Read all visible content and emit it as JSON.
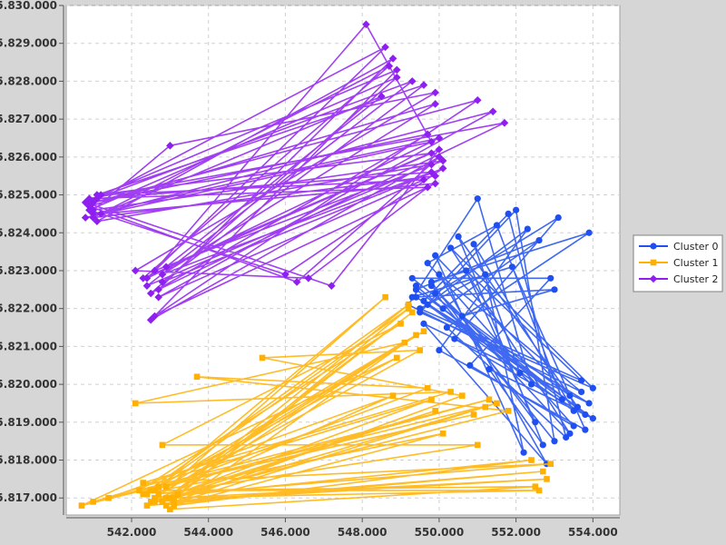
{
  "chart_data": {
    "type": "line",
    "title": "",
    "xlabel": "",
    "ylabel": "",
    "xlim": [
      540.3,
      554.7
    ],
    "ylim": [
      5816.55,
      5830.0
    ],
    "x_ticks": [
      542,
      544,
      546,
      548,
      550,
      552,
      554
    ],
    "x_tick_labels": [
      "542.000",
      "544.000",
      "546.000",
      "548.000",
      "550.000",
      "552.000",
      "554.000"
    ],
    "y_ticks": [
      5817,
      5818,
      5819,
      5820,
      5821,
      5822,
      5823,
      5824,
      5825,
      5826,
      5827,
      5828,
      5829,
      5830
    ],
    "y_tick_labels": [
      "5.817.000",
      "5.818.000",
      "5.819.000",
      "5.820.000",
      "5.821.000",
      "5.822.000",
      "5.823.000",
      "5.824.000",
      "5.825.000",
      "5.826.000",
      "5.827.000",
      "5.828.000",
      "5.829.000",
      "5.830.000"
    ],
    "grid": true,
    "legend_position": "right",
    "series": [
      {
        "name": "Cluster 0",
        "color": "#1f4ff0",
        "marker": "circle",
        "points": [
          [
            549.4,
            5822.3
          ],
          [
            553.9,
            5819.5
          ],
          [
            549.6,
            5821.6
          ],
          [
            552.8,
            5817.9
          ],
          [
            550.0,
            5822.9
          ],
          [
            553.7,
            5819.8
          ],
          [
            549.2,
            5822.1
          ],
          [
            551.0,
            5824.9
          ],
          [
            552.4,
            5820.0
          ],
          [
            549.8,
            5822.6
          ],
          [
            553.4,
            5818.7
          ],
          [
            550.3,
            5823.6
          ],
          [
            554.0,
            5819.9
          ],
          [
            549.5,
            5821.9
          ],
          [
            552.0,
            5824.6
          ],
          [
            553.0,
            5818.5
          ],
          [
            549.9,
            5822.4
          ],
          [
            553.1,
            5824.4
          ],
          [
            550.4,
            5821.2
          ],
          [
            553.8,
            5819.2
          ],
          [
            549.3,
            5822.8
          ],
          [
            552.9,
            5822.8
          ],
          [
            550.8,
            5820.5
          ],
          [
            553.5,
            5818.9
          ],
          [
            549.7,
            5823.2
          ],
          [
            551.5,
            5824.2
          ],
          [
            553.2,
            5819.6
          ],
          [
            550.1,
            5822.0
          ],
          [
            552.6,
            5823.8
          ],
          [
            549.4,
            5822.5
          ],
          [
            554.0,
            5819.1
          ],
          [
            551.3,
            5820.4
          ],
          [
            552.7,
            5818.4
          ],
          [
            550.5,
            5823.9
          ],
          [
            553.6,
            5819.4
          ],
          [
            549.6,
            5822.2
          ],
          [
            551.8,
            5824.5
          ],
          [
            553.3,
            5818.6
          ],
          [
            550.2,
            5821.5
          ],
          [
            553.9,
            5824.0
          ],
          [
            549.8,
            5822.7
          ],
          [
            552.5,
            5819.0
          ],
          [
            550.7,
            5823.0
          ],
          [
            553.7,
            5820.1
          ],
          [
            549.5,
            5822.0
          ],
          [
            551.2,
            5822.9
          ],
          [
            552.2,
            5818.2
          ],
          [
            549.9,
            5823.4
          ],
          [
            553.4,
            5819.7
          ],
          [
            550.6,
            5821.8
          ],
          [
            553.0,
            5822.5
          ],
          [
            549.3,
            5822.3
          ],
          [
            551.9,
            5823.1
          ],
          [
            553.8,
            5818.8
          ],
          [
            550.0,
            5820.9
          ],
          [
            552.3,
            5824.1
          ],
          [
            549.7,
            5822.1
          ],
          [
            553.5,
            5819.3
          ],
          [
            550.9,
            5823.7
          ],
          [
            552.1,
            5820.3
          ],
          [
            549.4,
            5822.6
          ]
        ]
      },
      {
        "name": "Cluster 1",
        "color": "#ffb000",
        "marker": "square",
        "points": [
          [
            542.4,
            5817.1
          ],
          [
            549.2,
            5822.0
          ],
          [
            542.9,
            5816.8
          ],
          [
            551.2,
            5819.4
          ],
          [
            543.1,
            5817.0
          ],
          [
            552.8,
            5817.5
          ],
          [
            542.6,
            5816.9
          ],
          [
            549.8,
            5819.6
          ],
          [
            541.0,
            5816.9
          ],
          [
            550.9,
            5819.2
          ],
          [
            542.7,
            5817.3
          ],
          [
            549.4,
            5821.3
          ],
          [
            543.0,
            5816.7
          ],
          [
            552.5,
            5817.3
          ],
          [
            542.5,
            5817.2
          ],
          [
            548.9,
            5820.7
          ],
          [
            540.7,
            5816.8
          ],
          [
            551.5,
            5819.5
          ],
          [
            542.8,
            5816.9
          ],
          [
            549.3,
            5821.9
          ],
          [
            543.2,
            5817.1
          ],
          [
            552.9,
            5817.9
          ],
          [
            542.3,
            5817.4
          ],
          [
            550.3,
            5819.8
          ],
          [
            542.1,
            5819.5
          ],
          [
            549.1,
            5821.1
          ],
          [
            542.9,
            5817.0
          ],
          [
            551.8,
            5819.3
          ],
          [
            543.7,
            5820.2
          ],
          [
            549.7,
            5819.9
          ],
          [
            542.6,
            5817.2
          ],
          [
            548.6,
            5822.3
          ],
          [
            542.4,
            5816.8
          ],
          [
            552.7,
            5817.7
          ],
          [
            543.1,
            5816.9
          ],
          [
            550.6,
            5819.7
          ],
          [
            545.4,
            5820.7
          ],
          [
            549.5,
            5820.9
          ],
          [
            542.7,
            5817.1
          ],
          [
            551.0,
            5818.4
          ],
          [
            542.8,
            5818.4
          ],
          [
            549.0,
            5821.6
          ],
          [
            542.2,
            5817.2
          ],
          [
            552.6,
            5817.2
          ],
          [
            543.0,
            5817.0
          ],
          [
            549.9,
            5819.3
          ],
          [
            542.5,
            5816.9
          ],
          [
            548.8,
            5819.7
          ],
          [
            541.4,
            5817.0
          ],
          [
            551.3,
            5819.6
          ],
          [
            542.9,
            5817.3
          ],
          [
            549.6,
            5821.4
          ],
          [
            542.6,
            5817.0
          ],
          [
            552.4,
            5818.0
          ],
          [
            543.1,
            5816.8
          ],
          [
            550.1,
            5818.7
          ],
          [
            542.3,
            5817.1
          ],
          [
            549.2,
            5822.1
          ],
          [
            542.8,
            5816.9
          ]
        ]
      },
      {
        "name": "Cluster 2",
        "color": "#8f1ff0",
        "marker": "diamond",
        "points": [
          [
            541.0,
            5824.5
          ],
          [
            550.0,
            5826.5
          ],
          [
            542.4,
            5822.8
          ],
          [
            548.6,
            5828.9
          ],
          [
            541.1,
            5824.9
          ],
          [
            549.8,
            5825.6
          ],
          [
            542.8,
            5822.9
          ],
          [
            549.9,
            5827.4
          ],
          [
            540.9,
            5824.7
          ],
          [
            546.3,
            5822.7
          ],
          [
            550.0,
            5826.0
          ],
          [
            542.5,
            5821.7
          ],
          [
            548.9,
            5828.3
          ],
          [
            541.2,
            5825.0
          ],
          [
            549.6,
            5825.4
          ],
          [
            542.7,
            5822.3
          ],
          [
            551.4,
            5827.2
          ],
          [
            540.8,
            5824.4
          ],
          [
            549.8,
            5826.4
          ],
          [
            548.1,
            5829.5
          ],
          [
            542.6,
            5823.0
          ],
          [
            550.1,
            5825.9
          ],
          [
            541.0,
            5824.6
          ],
          [
            543.0,
            5826.3
          ],
          [
            549.9,
            5827.7
          ],
          [
            542.1,
            5823.0
          ],
          [
            546.6,
            5822.8
          ],
          [
            549.7,
            5825.2
          ],
          [
            540.9,
            5824.9
          ],
          [
            551.7,
            5826.9
          ],
          [
            542.7,
            5822.5
          ],
          [
            548.8,
            5828.6
          ],
          [
            541.1,
            5824.3
          ],
          [
            549.8,
            5825.8
          ],
          [
            542.4,
            5822.6
          ],
          [
            549.3,
            5828.0
          ],
          [
            540.8,
            5824.8
          ],
          [
            547.2,
            5822.6
          ],
          [
            550.0,
            5826.2
          ],
          [
            542.9,
            5823.1
          ],
          [
            548.5,
            5827.6
          ],
          [
            541.2,
            5824.5
          ],
          [
            549.9,
            5825.3
          ],
          [
            542.6,
            5821.8
          ],
          [
            551.0,
            5827.5
          ],
          [
            541.0,
            5824.8
          ],
          [
            549.7,
            5826.6
          ],
          [
            542.5,
            5822.4
          ],
          [
            548.9,
            5828.1
          ],
          [
            540.9,
            5824.6
          ],
          [
            546.0,
            5822.9
          ],
          [
            550.1,
            5825.7
          ],
          [
            542.8,
            5822.7
          ],
          [
            549.6,
            5827.9
          ],
          [
            541.1,
            5825.0
          ],
          [
            549.8,
            5826.1
          ],
          [
            542.3,
            5822.8
          ],
          [
            548.7,
            5828.4
          ],
          [
            541.0,
            5824.4
          ],
          [
            549.9,
            5825.5
          ]
        ]
      }
    ]
  }
}
